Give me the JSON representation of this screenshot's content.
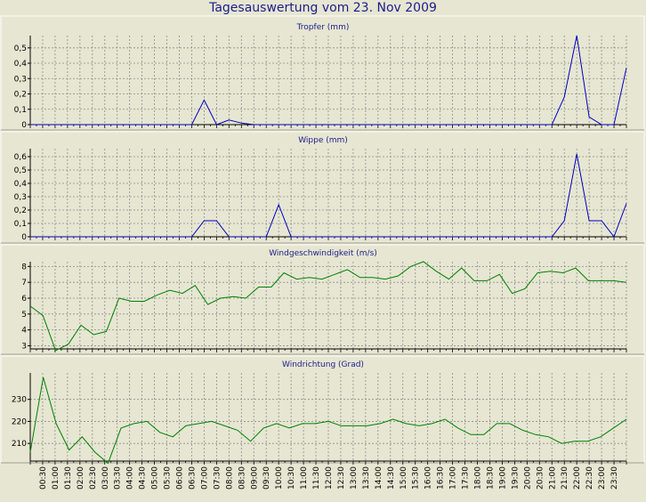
{
  "page_title": "Tagesauswertung vom 23. Nov 2009",
  "colors": {
    "blue": "#0000c0",
    "green": "#008000",
    "panel_bg": "#e6e6d2",
    "plot_bg": "#e6e6d2",
    "grid": "#8c8c8c"
  },
  "time_labels": [
    "00:30",
    "01:00",
    "01:30",
    "02:00",
    "02:30",
    "03:00",
    "03:30",
    "04:00",
    "04:30",
    "05:00",
    "05:30",
    "06:00",
    "06:30",
    "07:00",
    "07:30",
    "08:00",
    "08:30",
    "09:00",
    "09:30",
    "10:00",
    "10:30",
    "11:00",
    "11:30",
    "12:00",
    "12:30",
    "13:00",
    "13:30",
    "14:00",
    "14:30",
    "15:00",
    "15:30",
    "16:00",
    "16:30",
    "17:00",
    "17:30",
    "18:00",
    "18:30",
    "19:00",
    "19:30",
    "20:00",
    "20:30",
    "21:00",
    "21:30",
    "22:00",
    "22:30",
    "23:00",
    "23:30"
  ],
  "chart_data": [
    {
      "type": "line",
      "title": "Tropfer (mm)",
      "color": "blue",
      "ylim": [
        0,
        0.58
      ],
      "yticks": [
        0,
        0.1,
        0.2,
        0.3,
        0.4,
        0.5
      ],
      "ytick_labels": [
        "0",
        "0,1",
        "0,2",
        "0,3",
        "0,4",
        "0,5"
      ],
      "values": [
        0,
        0,
        0,
        0,
        0,
        0,
        0,
        0,
        0,
        0,
        0,
        0,
        0,
        0,
        0.16,
        0,
        0.03,
        0.01,
        0,
        0,
        0,
        0,
        0,
        0,
        0,
        0,
        0,
        0,
        0,
        0,
        0,
        0,
        0,
        0,
        0,
        0,
        0,
        0,
        0,
        0,
        0,
        0,
        0,
        0.18,
        0.58,
        0.05,
        0,
        0,
        0.37
      ]
    },
    {
      "type": "line",
      "title": "Wippe (mm)",
      "color": "blue",
      "ylim": [
        0,
        0.66
      ],
      "yticks": [
        0,
        0.1,
        0.2,
        0.3,
        0.4,
        0.5,
        0.6
      ],
      "ytick_labels": [
        "0",
        "0,1",
        "0,2",
        "0,3",
        "0,4",
        "0,5",
        "0,6"
      ],
      "values": [
        0,
        0,
        0,
        0,
        0,
        0,
        0,
        0,
        0,
        0,
        0,
        0,
        0,
        0,
        0.12,
        0.12,
        0,
        0,
        0,
        0,
        0.24,
        0,
        0,
        0,
        0,
        0,
        0,
        0,
        0,
        0,
        0,
        0,
        0,
        0,
        0,
        0,
        0,
        0,
        0,
        0,
        0,
        0,
        0,
        0.12,
        0.62,
        0.12,
        0.12,
        0,
        0.25
      ]
    },
    {
      "type": "line",
      "title": "Windgeschwindigkeit (m/s)",
      "color": "green",
      "ylim": [
        2.8,
        8.3
      ],
      "yticks": [
        3,
        4,
        5,
        6,
        7,
        8
      ],
      "ytick_labels": [
        "3",
        "4",
        "5",
        "6",
        "7",
        "8"
      ],
      "values": [
        5.5,
        4.9,
        2.7,
        3.1,
        4.3,
        3.7,
        3.9,
        6.0,
        5.8,
        5.8,
        6.2,
        6.5,
        6.3,
        6.8,
        5.6,
        6.0,
        6.1,
        6.0,
        6.7,
        6.7,
        7.6,
        7.2,
        7.3,
        7.2,
        7.5,
        7.8,
        7.3,
        7.3,
        7.2,
        7.4,
        8.0,
        8.3,
        7.7,
        7.2,
        7.9,
        7.1,
        7.1,
        7.5,
        6.3,
        6.6,
        7.6,
        7.7,
        7.6,
        7.9,
        7.1,
        7.1,
        7.1,
        7.0
      ]
    },
    {
      "type": "line",
      "title": "Windrichtung (Grad)",
      "color": "green",
      "ylim": [
        202,
        242
      ],
      "yticks": [
        210,
        220,
        230
      ],
      "ytick_labels": [
        "210",
        "220",
        "230"
      ],
      "values": [
        206,
        240,
        219,
        207,
        213,
        206,
        201,
        217,
        219,
        220,
        215,
        213,
        218,
        219,
        220,
        218,
        216,
        211,
        217,
        219,
        217,
        219,
        219,
        220,
        218,
        218,
        218,
        219,
        221,
        219,
        218,
        219,
        221,
        217,
        214,
        214,
        219,
        219,
        216,
        214,
        213,
        210,
        211,
        211,
        213,
        217,
        221
      ]
    }
  ]
}
